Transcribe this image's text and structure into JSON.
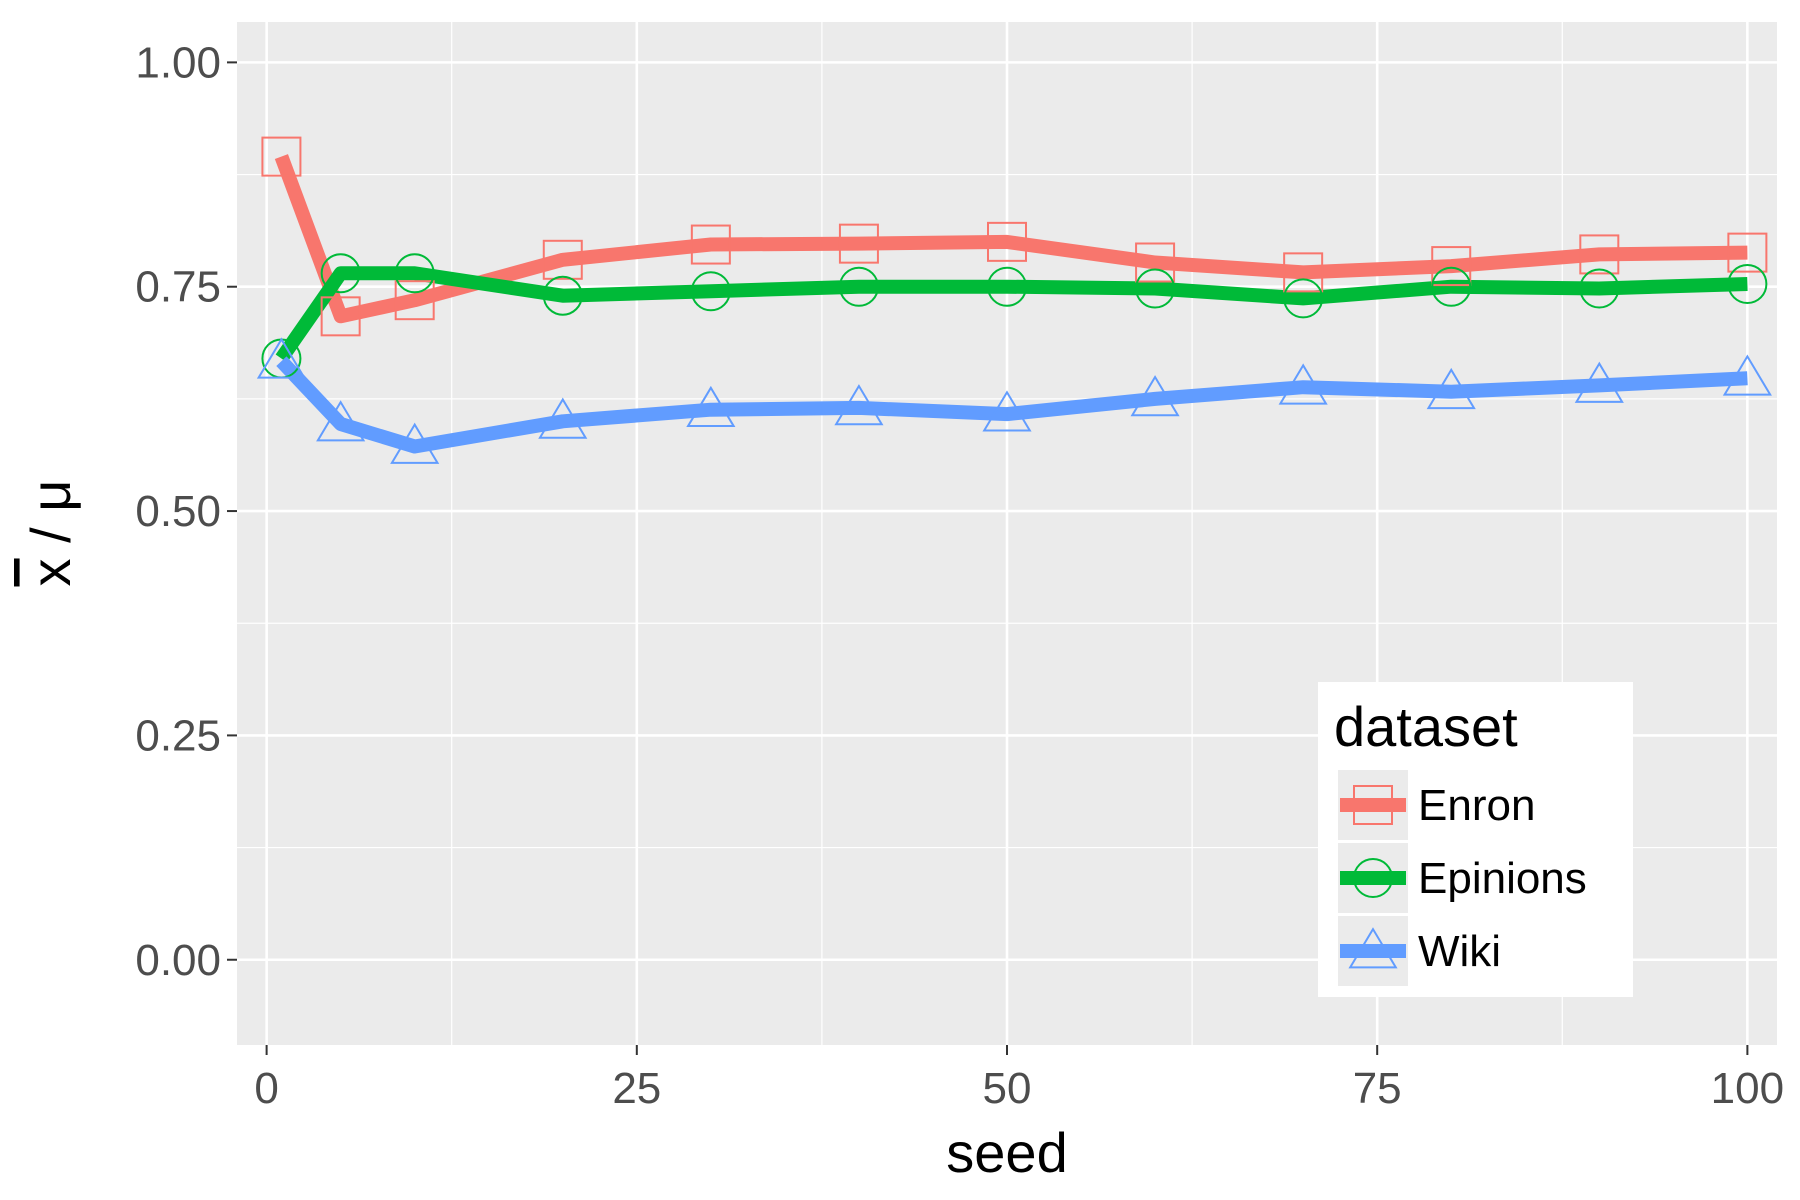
{
  "chart_data": {
    "type": "line",
    "xlabel": "seed",
    "ylabel_main": "x",
    "ylabel_rest": " / μ",
    "xlim": [
      -2,
      102
    ],
    "ylim": [
      -0.095,
      1.045
    ],
    "x_ticks": [
      0,
      25,
      50,
      75,
      100
    ],
    "x_tick_labels": [
      "0",
      "25",
      "50",
      "75",
      "100"
    ],
    "y_ticks": [
      0,
      0.25,
      0.5,
      0.75,
      1.0
    ],
    "y_tick_labels": [
      "0.00",
      "0.25",
      "0.50",
      "0.75",
      "1.00"
    ],
    "grid": true,
    "legend": {
      "title": "dataset",
      "position": "bottom-right"
    },
    "series": [
      {
        "name": "Enron",
        "color": "#F8766D",
        "marker": "square",
        "x": [
          1,
          5,
          10,
          20,
          30,
          40,
          50,
          60,
          70,
          80,
          90,
          100
        ],
        "y": [
          0.895,
          0.717,
          0.735,
          0.78,
          0.797,
          0.798,
          0.8,
          0.777,
          0.766,
          0.773,
          0.786,
          0.788
        ]
      },
      {
        "name": "Epinions",
        "color": "#00BA38",
        "marker": "circle",
        "x": [
          1,
          5,
          10,
          20,
          30,
          40,
          50,
          60,
          70,
          80,
          90,
          100
        ],
        "y": [
          0.67,
          0.765,
          0.765,
          0.74,
          0.745,
          0.75,
          0.75,
          0.748,
          0.737,
          0.75,
          0.748,
          0.753
        ]
      },
      {
        "name": "Wiki",
        "color": "#619CFF",
        "marker": "triangle",
        "x": [
          1,
          5,
          10,
          20,
          30,
          40,
          50,
          60,
          70,
          80,
          90,
          100
        ],
        "y": [
          0.667,
          0.597,
          0.572,
          0.6,
          0.613,
          0.615,
          0.608,
          0.625,
          0.638,
          0.633,
          0.64,
          0.648
        ]
      }
    ]
  }
}
